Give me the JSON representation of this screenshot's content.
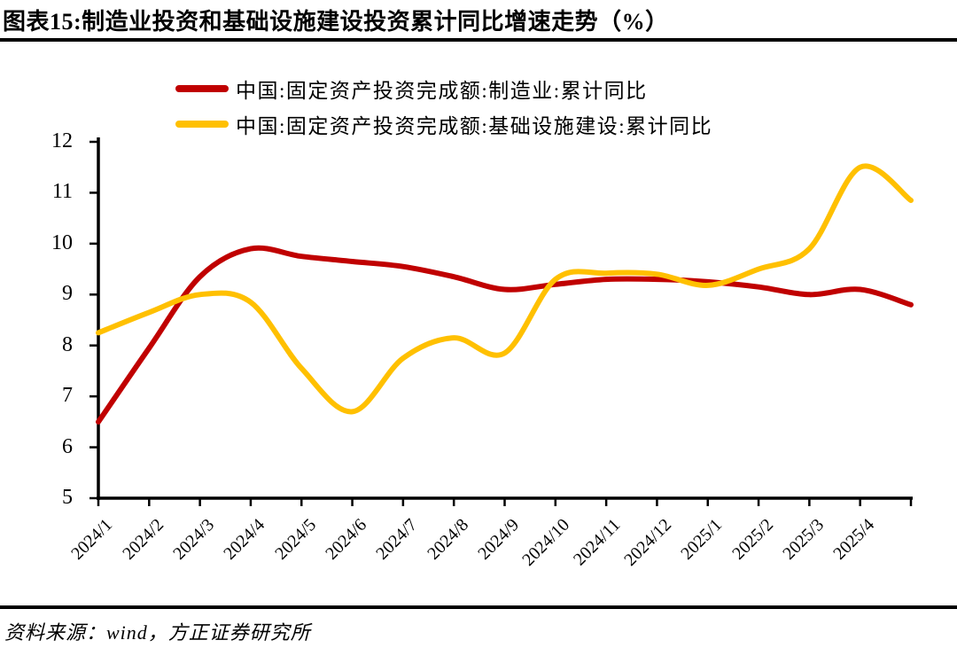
{
  "title": "图表15:制造业投资和基础设施建设投资累计同比增速走势（%）",
  "source": "资料来源：wind，方正证券研究所",
  "legend": {
    "items": [
      {
        "label": "中国:固定资产投资完成额:制造业:累计同比",
        "color": "#C00000"
      },
      {
        "label": "中国:固定资产投资完成额:基础设施建设:累计同比",
        "color": "#FFC000"
      }
    ]
  },
  "chart_data": {
    "type": "line",
    "title": "制造业投资和基础设施建设投资累计同比增速走势（%）",
    "xlabel": "",
    "ylabel": "",
    "ylim": [
      5,
      12
    ],
    "yticks": [
      5,
      6,
      7,
      8,
      9,
      10,
      11,
      12
    ],
    "grid": false,
    "smooth": true,
    "legend_position": "top",
    "categories": [
      "2024/1",
      "2024/2",
      "2024/3",
      "2024/4",
      "2024/5",
      "2024/6",
      "2024/7",
      "2024/8",
      "2024/9",
      "2024/10",
      "2024/11",
      "2024/12",
      "2025/1",
      "2025/2",
      "2025/3",
      "2025/4",
      ""
    ],
    "series": [
      {
        "name": "中国:固定资产投资完成额:制造业:累计同比",
        "color": "#C00000",
        "values": [
          6.5,
          7.95,
          9.35,
          9.9,
          9.75,
          9.65,
          9.55,
          9.35,
          9.1,
          9.2,
          9.3,
          9.3,
          9.25,
          9.15,
          9.0,
          9.1,
          8.8
        ]
      },
      {
        "name": "中国:固定资产投资完成额:基础设施建设:累计同比",
        "color": "#FFC000",
        "values": [
          8.25,
          8.65,
          9.0,
          8.85,
          7.55,
          6.7,
          7.75,
          8.15,
          7.85,
          9.3,
          9.42,
          9.4,
          9.18,
          9.5,
          9.9,
          11.5,
          10.85
        ]
      }
    ]
  }
}
